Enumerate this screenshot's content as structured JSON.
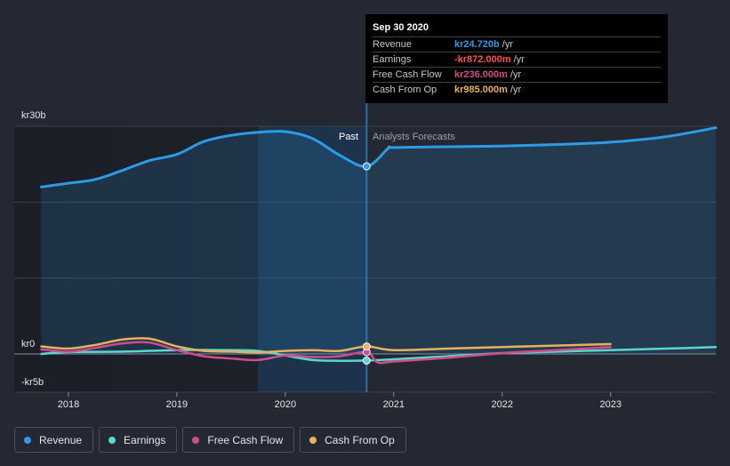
{
  "tooltip": {
    "date": "Sep 30 2020",
    "rows": [
      {
        "name": "Revenue",
        "value": "kr24.720b",
        "unit": "/yr",
        "color": "#2d9be6"
      },
      {
        "name": "Earnings",
        "value": "-kr872.000m",
        "unit": "/yr",
        "color": "#ff4d4d"
      },
      {
        "name": "Free Cash Flow",
        "value": "kr236.000m",
        "unit": "/yr",
        "color": "#d04c8c"
      },
      {
        "name": "Cash From Op",
        "value": "kr985.000m",
        "unit": "/yr",
        "color": "#e9b15f"
      }
    ]
  },
  "labels": {
    "past": "Past",
    "forecast": "Analysts Forecasts"
  },
  "legend": [
    {
      "label": "Revenue",
      "color": "#2d9be6"
    },
    {
      "label": "Earnings",
      "color": "#5ad8d0"
    },
    {
      "label": "Free Cash Flow",
      "color": "#d04c8c"
    },
    {
      "label": "Cash From Op",
      "color": "#e9b15f"
    }
  ],
  "chart_data": {
    "type": "line",
    "title": "",
    "xlabel": "",
    "ylabel": "",
    "x_ticks": [
      2018,
      2019,
      2020,
      2021,
      2022,
      2023
    ],
    "y_tick_labels": [
      {
        "value": 30,
        "label": "kr30b"
      },
      {
        "value": 0,
        "label": "kr0"
      },
      {
        "value": -5,
        "label": "-kr5b"
      }
    ],
    "xlim": [
      2017.5,
      2023.97
    ],
    "ylim": [
      -5,
      30
    ],
    "past_end": 2020.75,
    "highlight_start": 2019.75,
    "units": "SEK billions",
    "series": [
      {
        "name": "Revenue",
        "color": "#2d9be6",
        "fill": true,
        "points": [
          [
            2017.75,
            22
          ],
          [
            2018,
            22.5
          ],
          [
            2018.25,
            23
          ],
          [
            2018.5,
            24.2
          ],
          [
            2018.75,
            25.5
          ],
          [
            2019,
            26.3
          ],
          [
            2019.25,
            28
          ],
          [
            2019.5,
            28.8
          ],
          [
            2019.75,
            29.2
          ],
          [
            2020,
            29.3
          ],
          [
            2020.25,
            28.4
          ],
          [
            2020.5,
            26.2
          ],
          [
            2020.75,
            24.72
          ],
          [
            2020.95,
            27.1
          ],
          [
            2021,
            27.2
          ],
          [
            2021.5,
            27.3
          ],
          [
            2022,
            27.4
          ],
          [
            2022.5,
            27.6
          ],
          [
            2023,
            27.9
          ],
          [
            2023.5,
            28.6
          ],
          [
            2023.97,
            29.8
          ]
        ]
      },
      {
        "name": "Earnings",
        "color": "#5ad8d0",
        "points": [
          [
            2017.75,
            0
          ],
          [
            2018,
            0.25
          ],
          [
            2018.5,
            0.3
          ],
          [
            2019,
            0.5
          ],
          [
            2019.5,
            0.5
          ],
          [
            2019.75,
            0.4
          ],
          [
            2020,
            -0.2
          ],
          [
            2020.25,
            -0.8
          ],
          [
            2020.5,
            -0.9
          ],
          [
            2020.75,
            -0.872
          ],
          [
            2021,
            -0.7
          ],
          [
            2021.5,
            -0.3
          ],
          [
            2022,
            0.1
          ],
          [
            2022.5,
            0.3
          ],
          [
            2023,
            0.5
          ],
          [
            2023.5,
            0.7
          ],
          [
            2023.97,
            0.9
          ]
        ]
      },
      {
        "name": "Free Cash Flow",
        "color": "#d04c8c",
        "points": [
          [
            2017.75,
            0.6
          ],
          [
            2018,
            0.3
          ],
          [
            2018.25,
            0.8
          ],
          [
            2018.5,
            1.4
          ],
          [
            2018.75,
            1.5
          ],
          [
            2019,
            0.5
          ],
          [
            2019.25,
            -0.3
          ],
          [
            2019.5,
            -0.6
          ],
          [
            2019.75,
            -0.8
          ],
          [
            2020,
            -0.2
          ],
          [
            2020.25,
            -0.4
          ],
          [
            2020.5,
            -0.3
          ],
          [
            2020.75,
            0.236
          ],
          [
            2020.85,
            -1.1
          ],
          [
            2021,
            -1.0
          ],
          [
            2021.5,
            -0.5
          ],
          [
            2022,
            0.1
          ],
          [
            2022.5,
            0.5
          ],
          [
            2023,
            0.9
          ]
        ]
      },
      {
        "name": "Cash From Op",
        "color": "#e9b15f",
        "points": [
          [
            2017.75,
            1.0
          ],
          [
            2018,
            0.7
          ],
          [
            2018.25,
            1.2
          ],
          [
            2018.5,
            1.9
          ],
          [
            2018.75,
            2.0
          ],
          [
            2019,
            1.0
          ],
          [
            2019.25,
            0.4
          ],
          [
            2019.5,
            0.3
          ],
          [
            2019.75,
            0.2
          ],
          [
            2020,
            0.4
          ],
          [
            2020.25,
            0.5
          ],
          [
            2020.5,
            0.4
          ],
          [
            2020.75,
            0.985
          ],
          [
            2021,
            0.5
          ],
          [
            2021.5,
            0.7
          ],
          [
            2022,
            0.9
          ],
          [
            2022.5,
            1.1
          ],
          [
            2023,
            1.3
          ]
        ]
      }
    ]
  }
}
